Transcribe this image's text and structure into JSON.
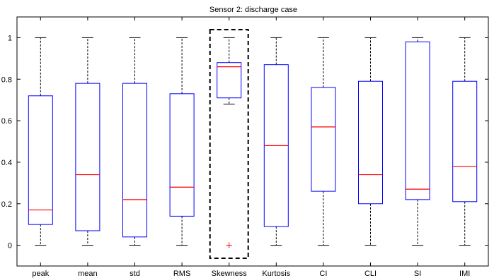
{
  "chart_data": {
    "type": "box",
    "title": "Sensor 2: discharge case",
    "xlabel": "",
    "ylabel": "",
    "ylim": [
      -0.1,
      1.1
    ],
    "yticks": [
      0,
      0.2,
      0.4,
      0.6,
      0.8,
      1
    ],
    "ytick_labels": [
      "0",
      "0.2",
      "0.4",
      "0.6",
      "0.8",
      "1"
    ],
    "categories": [
      "peak",
      "mean",
      "std",
      "RMS",
      "Skewness",
      "Kurtosis",
      "CI",
      "CLI",
      "SI",
      "IMI"
    ],
    "boxes": [
      {
        "whisker_low": 0.0,
        "q1": 0.1,
        "median": 0.17,
        "q3": 0.72,
        "whisker_high": 1.0,
        "outliers": []
      },
      {
        "whisker_low": 0.0,
        "q1": 0.07,
        "median": 0.34,
        "q3": 0.78,
        "whisker_high": 1.0,
        "outliers": []
      },
      {
        "whisker_low": 0.0,
        "q1": 0.04,
        "median": 0.22,
        "q3": 0.78,
        "whisker_high": 1.0,
        "outliers": []
      },
      {
        "whisker_low": 0.0,
        "q1": 0.14,
        "median": 0.28,
        "q3": 0.73,
        "whisker_high": 1.0,
        "outliers": []
      },
      {
        "whisker_low": 0.68,
        "q1": 0.71,
        "median": 0.86,
        "q3": 0.88,
        "whisker_high": 1.0,
        "outliers": [
          0.0
        ]
      },
      {
        "whisker_low": 0.0,
        "q1": 0.09,
        "median": 0.48,
        "q3": 0.87,
        "whisker_high": 1.0,
        "outliers": []
      },
      {
        "whisker_low": 0.0,
        "q1": 0.26,
        "median": 0.57,
        "q3": 0.76,
        "whisker_high": 1.0,
        "outliers": []
      },
      {
        "whisker_low": 0.0,
        "q1": 0.2,
        "median": 0.34,
        "q3": 0.79,
        "whisker_high": 1.0,
        "outliers": []
      },
      {
        "whisker_low": 0.0,
        "q1": 0.22,
        "median": 0.27,
        "q3": 0.98,
        "whisker_high": 1.0,
        "outliers": []
      },
      {
        "whisker_low": 0.0,
        "q1": 0.21,
        "median": 0.38,
        "q3": 0.79,
        "whisker_high": 1.0,
        "outliers": []
      }
    ],
    "highlight_category": "Skewness",
    "grid": false,
    "colors": {
      "box": "#0000ff",
      "median": "#ff0000",
      "whisker": "#000000",
      "outlier": "#ff0000",
      "highlight_frame": "#000000"
    }
  }
}
